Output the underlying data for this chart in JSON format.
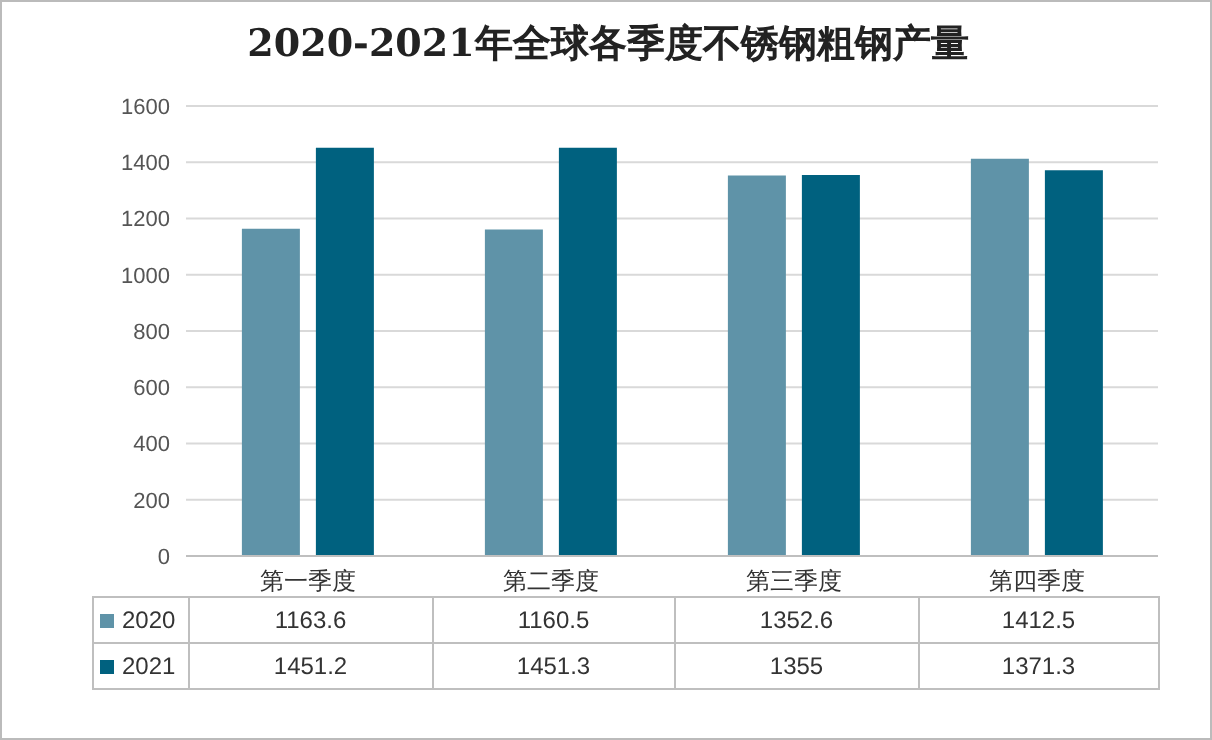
{
  "chart_data": {
    "type": "bar",
    "title": "2020-2021年全球各季度不锈钢粗钢产量",
    "categories": [
      "第一季度",
      "第二季度",
      "第三季度",
      "第四季度"
    ],
    "series": [
      {
        "name": "2020",
        "color": "#5f93a8",
        "values": [
          1163.6,
          1160.5,
          1352.6,
          1412.5
        ]
      },
      {
        "name": "2021",
        "color": "#00617f",
        "values": [
          1451.2,
          1451.3,
          1355,
          1371.3
        ]
      }
    ],
    "ylim": [
      0,
      1600
    ],
    "yticks": [
      0,
      200,
      400,
      600,
      800,
      1000,
      1200,
      1400,
      1600
    ],
    "grid": "y",
    "legend": "bottom",
    "data_labels": true
  }
}
